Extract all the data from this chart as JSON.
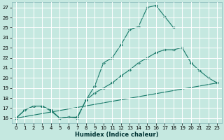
{
  "title": "",
  "xlabel": "Humidex (Indice chaleur)",
  "bg_color": "#c5e8e0",
  "grid_color": "#ffffff",
  "line_color": "#1a7a6a",
  "xlim": [
    -0.5,
    23.5
  ],
  "ylim": [
    15.5,
    27.5
  ],
  "xticks": [
    0,
    1,
    2,
    3,
    4,
    5,
    6,
    7,
    8,
    9,
    10,
    11,
    12,
    13,
    14,
    15,
    16,
    17,
    18,
    19,
    20,
    21,
    22,
    23
  ],
  "yticks": [
    16,
    17,
    18,
    19,
    20,
    21,
    22,
    23,
    24,
    25,
    26,
    27
  ],
  "series1_x": [
    0,
    1,
    2,
    3,
    4,
    5,
    6,
    7,
    8,
    9,
    10,
    11,
    12,
    13,
    14,
    15,
    16,
    17,
    18
  ],
  "series1_y": [
    16.0,
    16.8,
    17.2,
    17.2,
    16.7,
    16.0,
    16.1,
    16.0,
    17.8,
    19.2,
    21.5,
    22.0,
    23.3,
    24.8,
    25.1,
    27.0,
    27.2,
    26.1,
    25.0
  ],
  "series2_x": [
    0,
    1,
    2,
    3,
    4,
    5,
    6,
    7,
    8,
    9,
    10,
    11,
    12,
    13,
    14,
    15,
    16,
    17,
    18,
    19,
    20,
    21,
    22,
    23
  ],
  "series2_y": [
    16.0,
    16.8,
    17.2,
    17.2,
    16.8,
    16.0,
    16.1,
    16.1,
    17.8,
    18.5,
    19.0,
    19.5,
    20.2,
    20.8,
    21.5,
    22.0,
    22.5,
    22.8,
    22.8,
    23.0,
    21.5,
    20.7,
    20.0,
    19.5
  ],
  "series3_x": [
    0,
    23
  ],
  "series3_y": [
    16.0,
    19.5
  ],
  "marker": "D",
  "markersize": 2.0,
  "linewidth": 0.8
}
